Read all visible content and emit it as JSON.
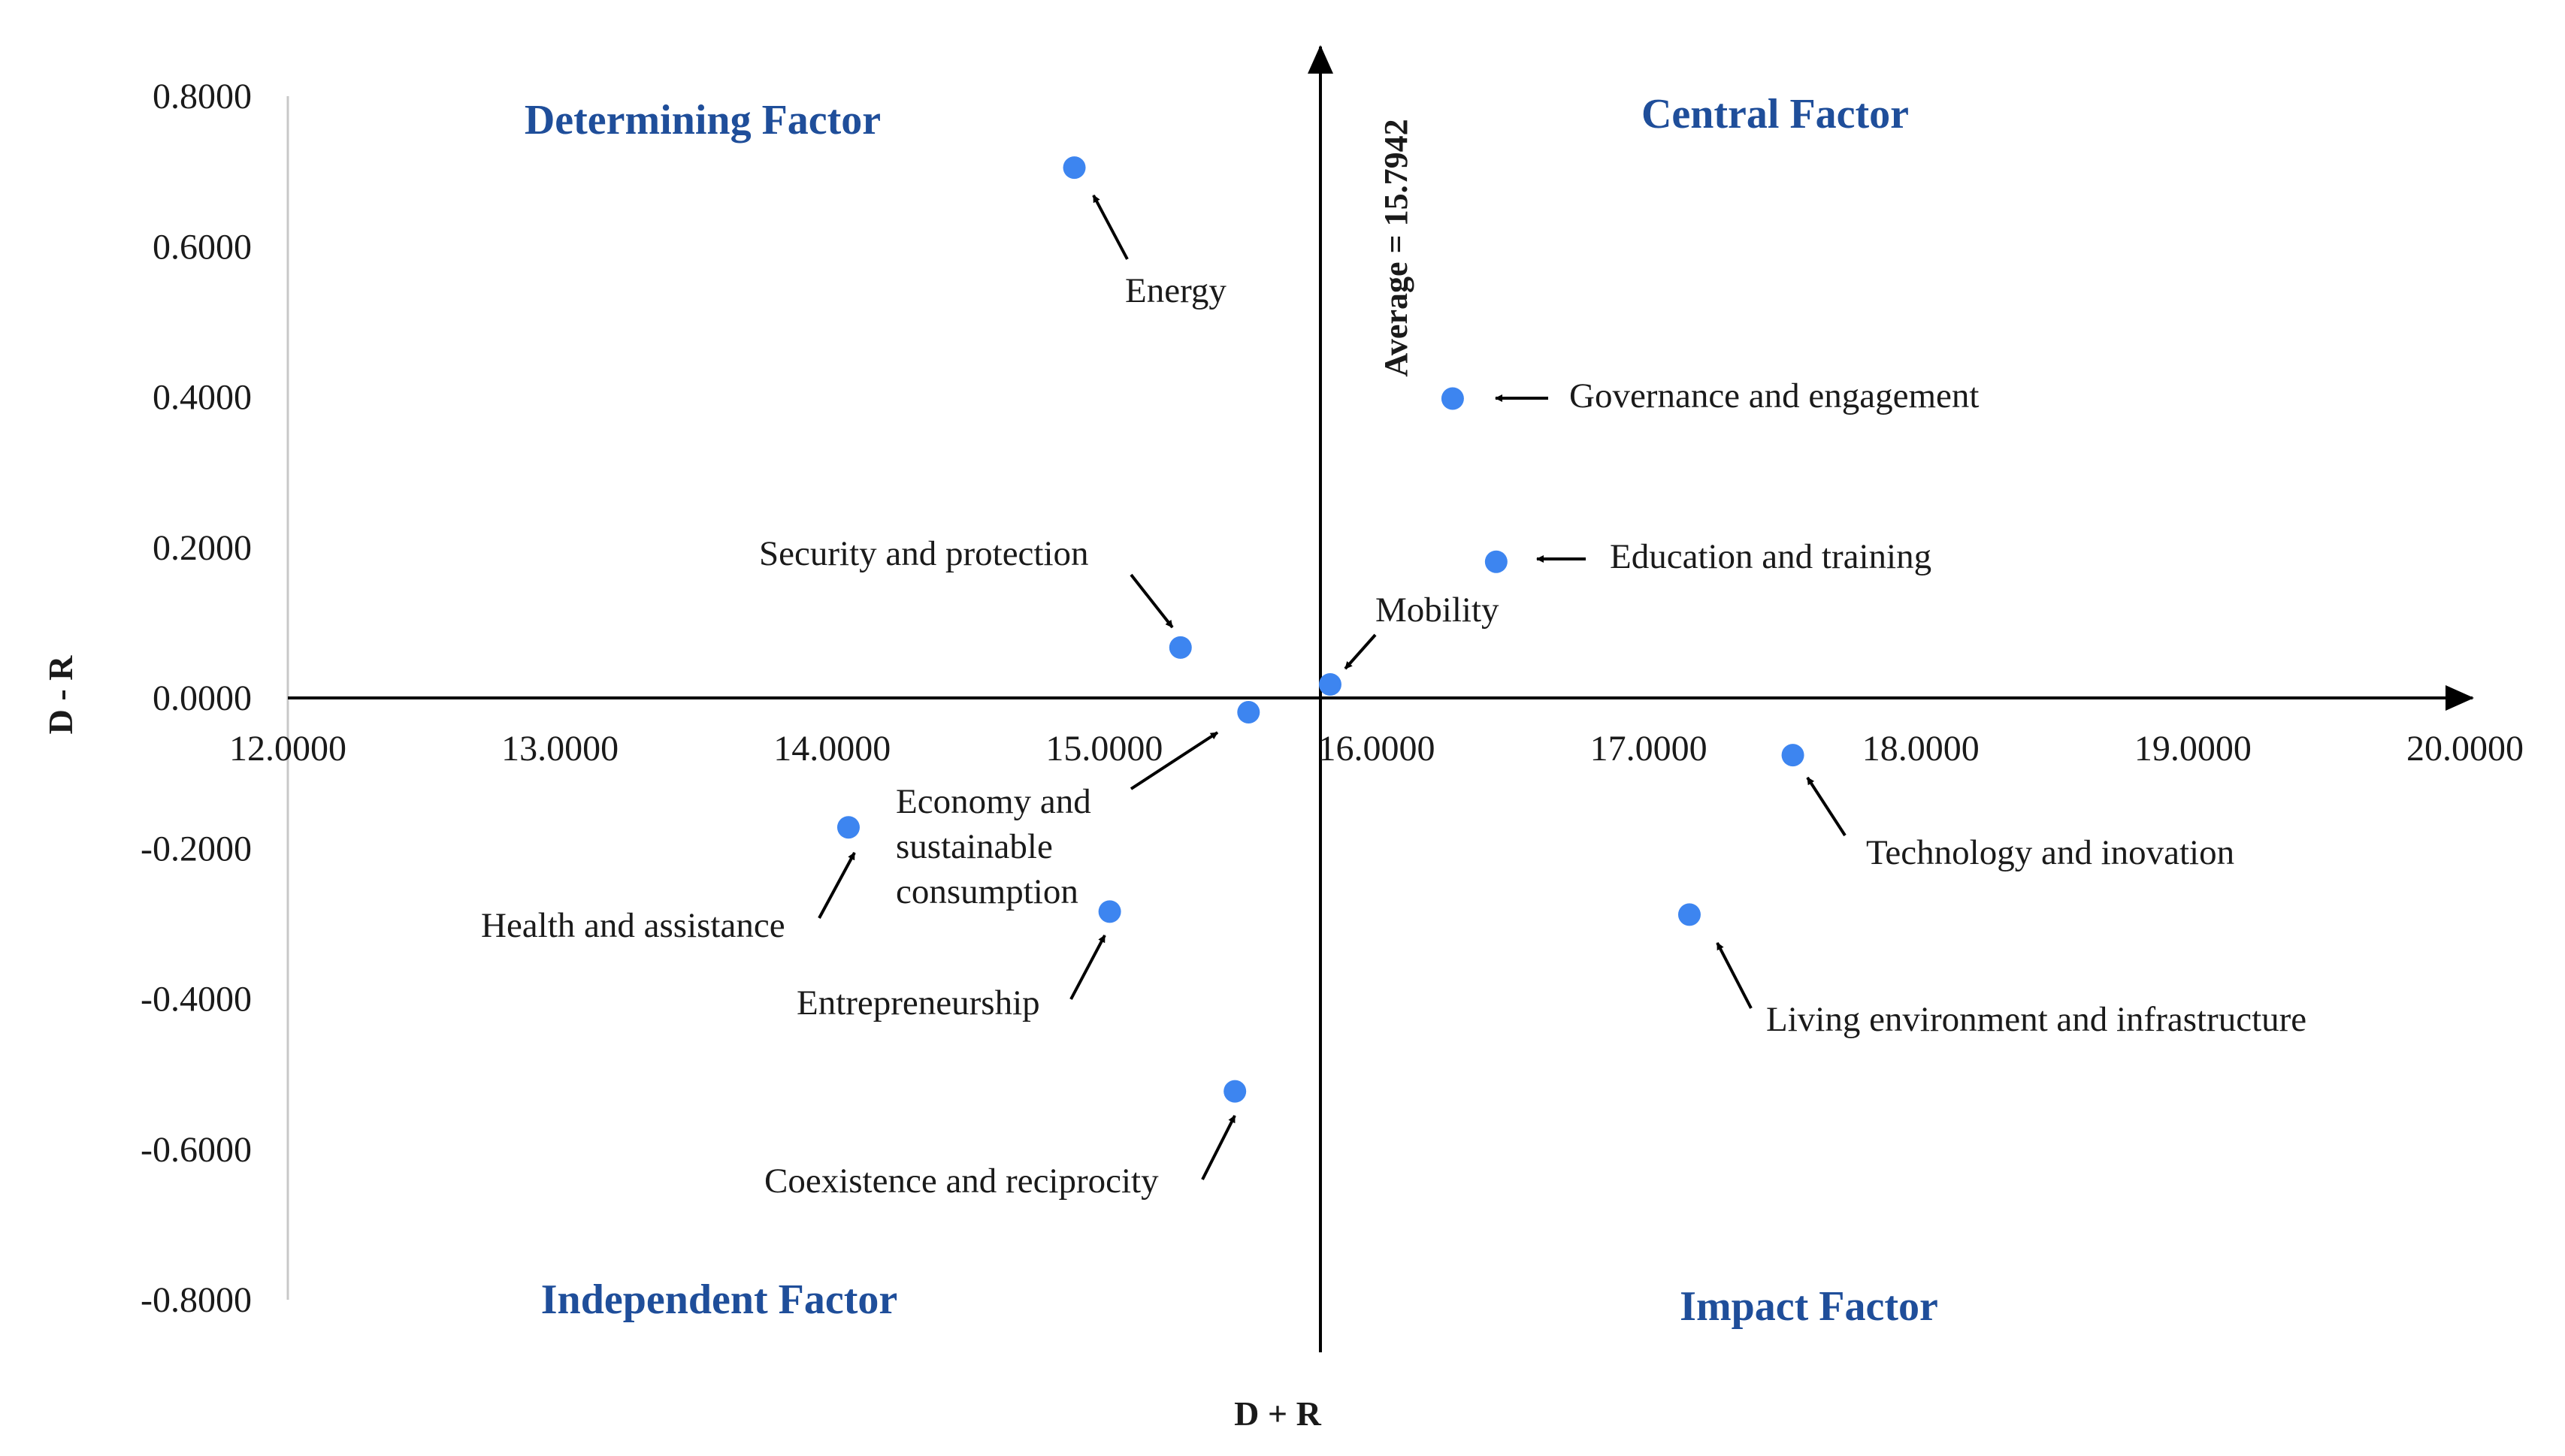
{
  "chart_data": {
    "type": "scatter",
    "xlabel": "D + R",
    "ylabel": "D - R",
    "xlim": [
      12,
      20
    ],
    "ylim": [
      -0.8,
      0.8
    ],
    "x_ticks": [
      "12.0000",
      "13.0000",
      "14.0000",
      "15.0000",
      "16.0000",
      "17.0000",
      "18.0000",
      "19.0000",
      "20.0000"
    ],
    "y_ticks": [
      "0.8000",
      "0.6000",
      "0.4000",
      "0.2000",
      "0.0000",
      "-0.2000",
      "-0.4000",
      "-0.6000",
      "-0.8000"
    ],
    "average_label": "Average = 15.7942",
    "average_x": 15.7942,
    "quadrants": {
      "top_left": "Determining Factor",
      "top_right": "Central Factor",
      "bottom_left": "Independent Factor",
      "bottom_right": "Impact Factor"
    },
    "points": [
      {
        "name": "Energy",
        "x": 14.89,
        "y": 0.705
      },
      {
        "name": "Governance and engagement",
        "x": 16.28,
        "y": 0.398
      },
      {
        "name": "Education and training",
        "x": 16.44,
        "y": 0.181
      },
      {
        "name": "Security and protection",
        "x": 15.28,
        "y": 0.067
      },
      {
        "name": "Mobility",
        "x": 15.83,
        "y": 0.018
      },
      {
        "name": "Economy and sustainable consumption",
        "x": 15.53,
        "y": -0.019
      },
      {
        "name": "Technology and inovation",
        "x": 17.53,
        "y": -0.076
      },
      {
        "name": "Health and assistance",
        "x": 14.06,
        "y": -0.172
      },
      {
        "name": "Entrepreneurship",
        "x": 15.02,
        "y": -0.284
      },
      {
        "name": "Living environment and infrastructure",
        "x": 17.15,
        "y": -0.288
      },
      {
        "name": "Coexistence and reciprocity",
        "x": 15.48,
        "y": -0.523
      }
    ],
    "labels": {
      "energy": "Energy",
      "governance": "Governance and engagement",
      "education": "Education and training",
      "security": "Security and protection",
      "mobility": "Mobility",
      "economy_1": "Economy and",
      "economy_2": "sustainable",
      "economy_3": "consumption",
      "technology": "Technology and inovation",
      "health": "Health and assistance",
      "entrepreneurship": "Entrepreneurship",
      "living": "Living environment and infrastructure",
      "coexistence": "Coexistence and reciprocity"
    },
    "colors": {
      "point": "#3d85f0",
      "quadrant_text": "#1f4e9a",
      "axis": "#000000"
    }
  }
}
